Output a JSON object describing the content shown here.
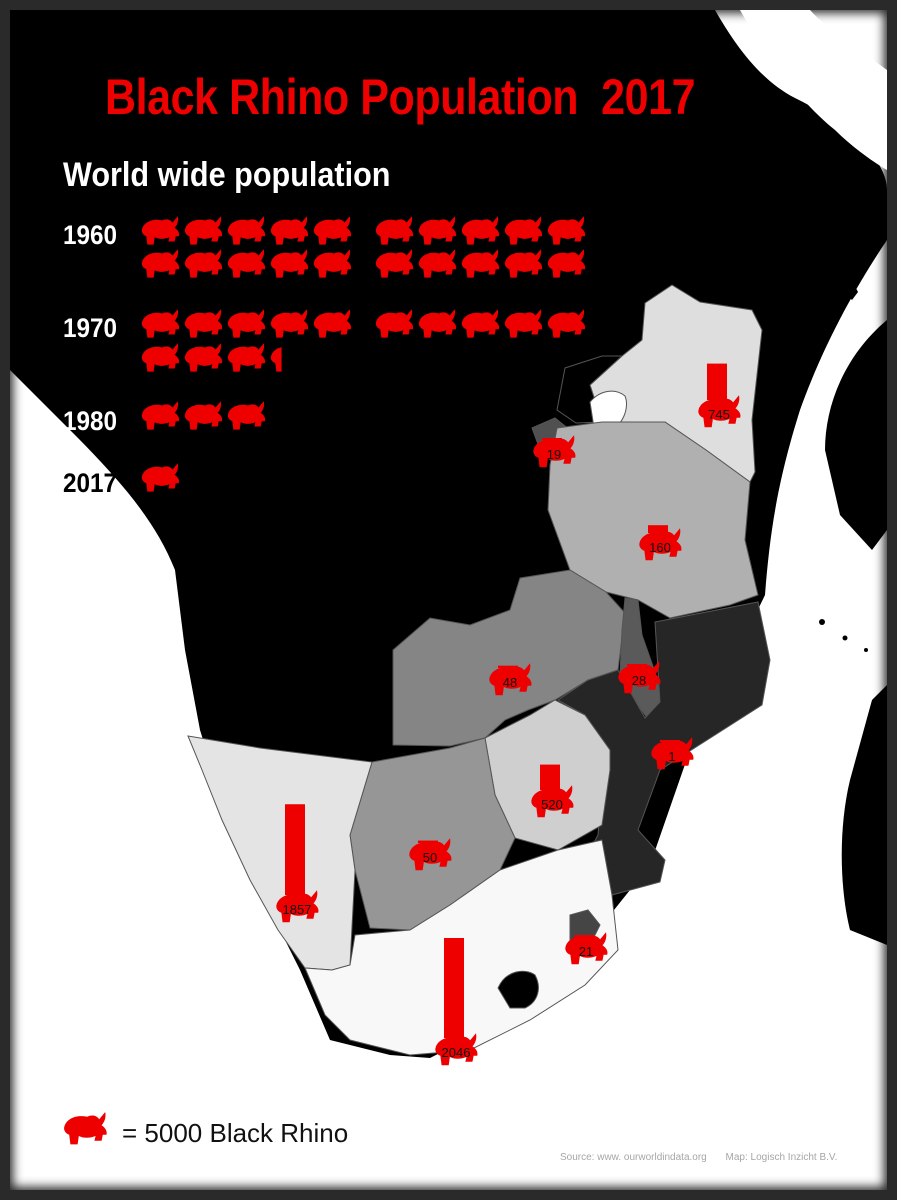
{
  "title": "Black Rhino Population  2017",
  "subtitle": "World wide population",
  "timeline": [
    {
      "year": "1960",
      "icons": 20
    },
    {
      "year": "1970",
      "icons": 13.3
    },
    {
      "year": "1980",
      "icons": 3
    },
    {
      "year": "2017",
      "icons": 1
    }
  ],
  "legend": {
    "label": "= 5000 Black Rhino",
    "units_per_icon": 5000
  },
  "source": "Source: www. ourworldindata.org",
  "map_credit": "Map: Logisch Inzicht B.V.",
  "icon": "rhino-icon",
  "colors": {
    "accent": "#ee0000",
    "ocean": "#ffffff",
    "land": "#000000"
  },
  "chart_data": {
    "type": "choropleth",
    "regions": [
      {
        "id": "kenya",
        "value": 745
      },
      {
        "id": "rwanda",
        "value": 19
      },
      {
        "id": "tanzania",
        "value": 160
      },
      {
        "id": "zambia",
        "value": 48
      },
      {
        "id": "malawi",
        "value": 28
      },
      {
        "id": "mozambique",
        "value": 1
      },
      {
        "id": "zimbabwe",
        "value": 520
      },
      {
        "id": "botswana",
        "value": 50
      },
      {
        "id": "namibia",
        "value": 1857
      },
      {
        "id": "swaziland",
        "value": 21
      },
      {
        "id": "south-africa",
        "value": 2046
      }
    ]
  }
}
